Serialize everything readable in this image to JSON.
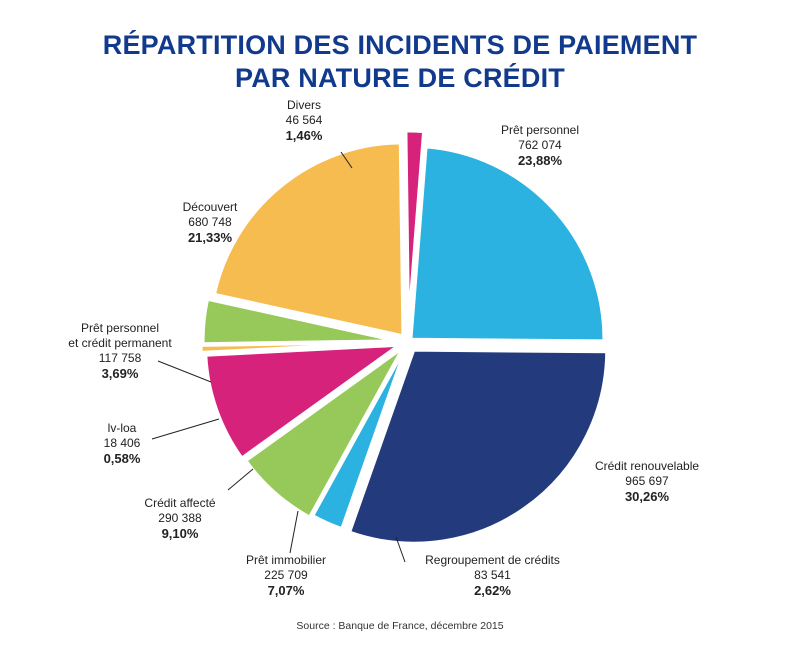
{
  "title_line1": "RÉPARTITION DES INCIDENTS DE PAIEMENT",
  "title_line2": "PAR NATURE DE CRÉDIT",
  "source": "Source : Banque de France, décembre 2015",
  "chart_data": {
    "type": "pie",
    "title": "RÉPARTITION DES INCIDENTS DE PAIEMENT PAR NATURE DE CRÉDIT",
    "slices": [
      {
        "name": "Prêt personnel",
        "value": "762 074",
        "percent": "23,88%",
        "pct": 23.88,
        "color": "#2cb2e0"
      },
      {
        "name": "Crédit renouvelable",
        "value": "965 697",
        "percent": "30,26%",
        "pct": 30.26,
        "color": "#233a7c"
      },
      {
        "name": "Regroupement de crédits",
        "value": "83 541",
        "percent": "2,62%",
        "pct": 2.62,
        "color": "#2cb2e0"
      },
      {
        "name": "Prêt immobilier",
        "value": "225 709",
        "percent": "7,07%",
        "pct": 7.07,
        "color": "#96c95a"
      },
      {
        "name": "Crédit affecté",
        "value": "290 388",
        "percent": "9,10%",
        "pct": 9.1,
        "color": "#d6227b"
      },
      {
        "name": "lv-loa",
        "value": "18 406",
        "percent": "0,58%",
        "pct": 0.58,
        "color": "#f7bc4f"
      },
      {
        "name": "Prêt personnel et crédit permanent",
        "name_line1": "Prêt personnel",
        "name_line2": "et crédit permanent",
        "value": "117 758",
        "percent": "3,69%",
        "pct": 3.69,
        "color": "#96c95a"
      },
      {
        "name": "Découvert",
        "value": "680 748",
        "percent": "21,33%",
        "pct": 21.33,
        "color": "#f7bc4f"
      },
      {
        "name": "Divers",
        "value": "46 564",
        "percent": "1,46%",
        "pct": 1.46,
        "color": "#d6227b"
      }
    ]
  }
}
